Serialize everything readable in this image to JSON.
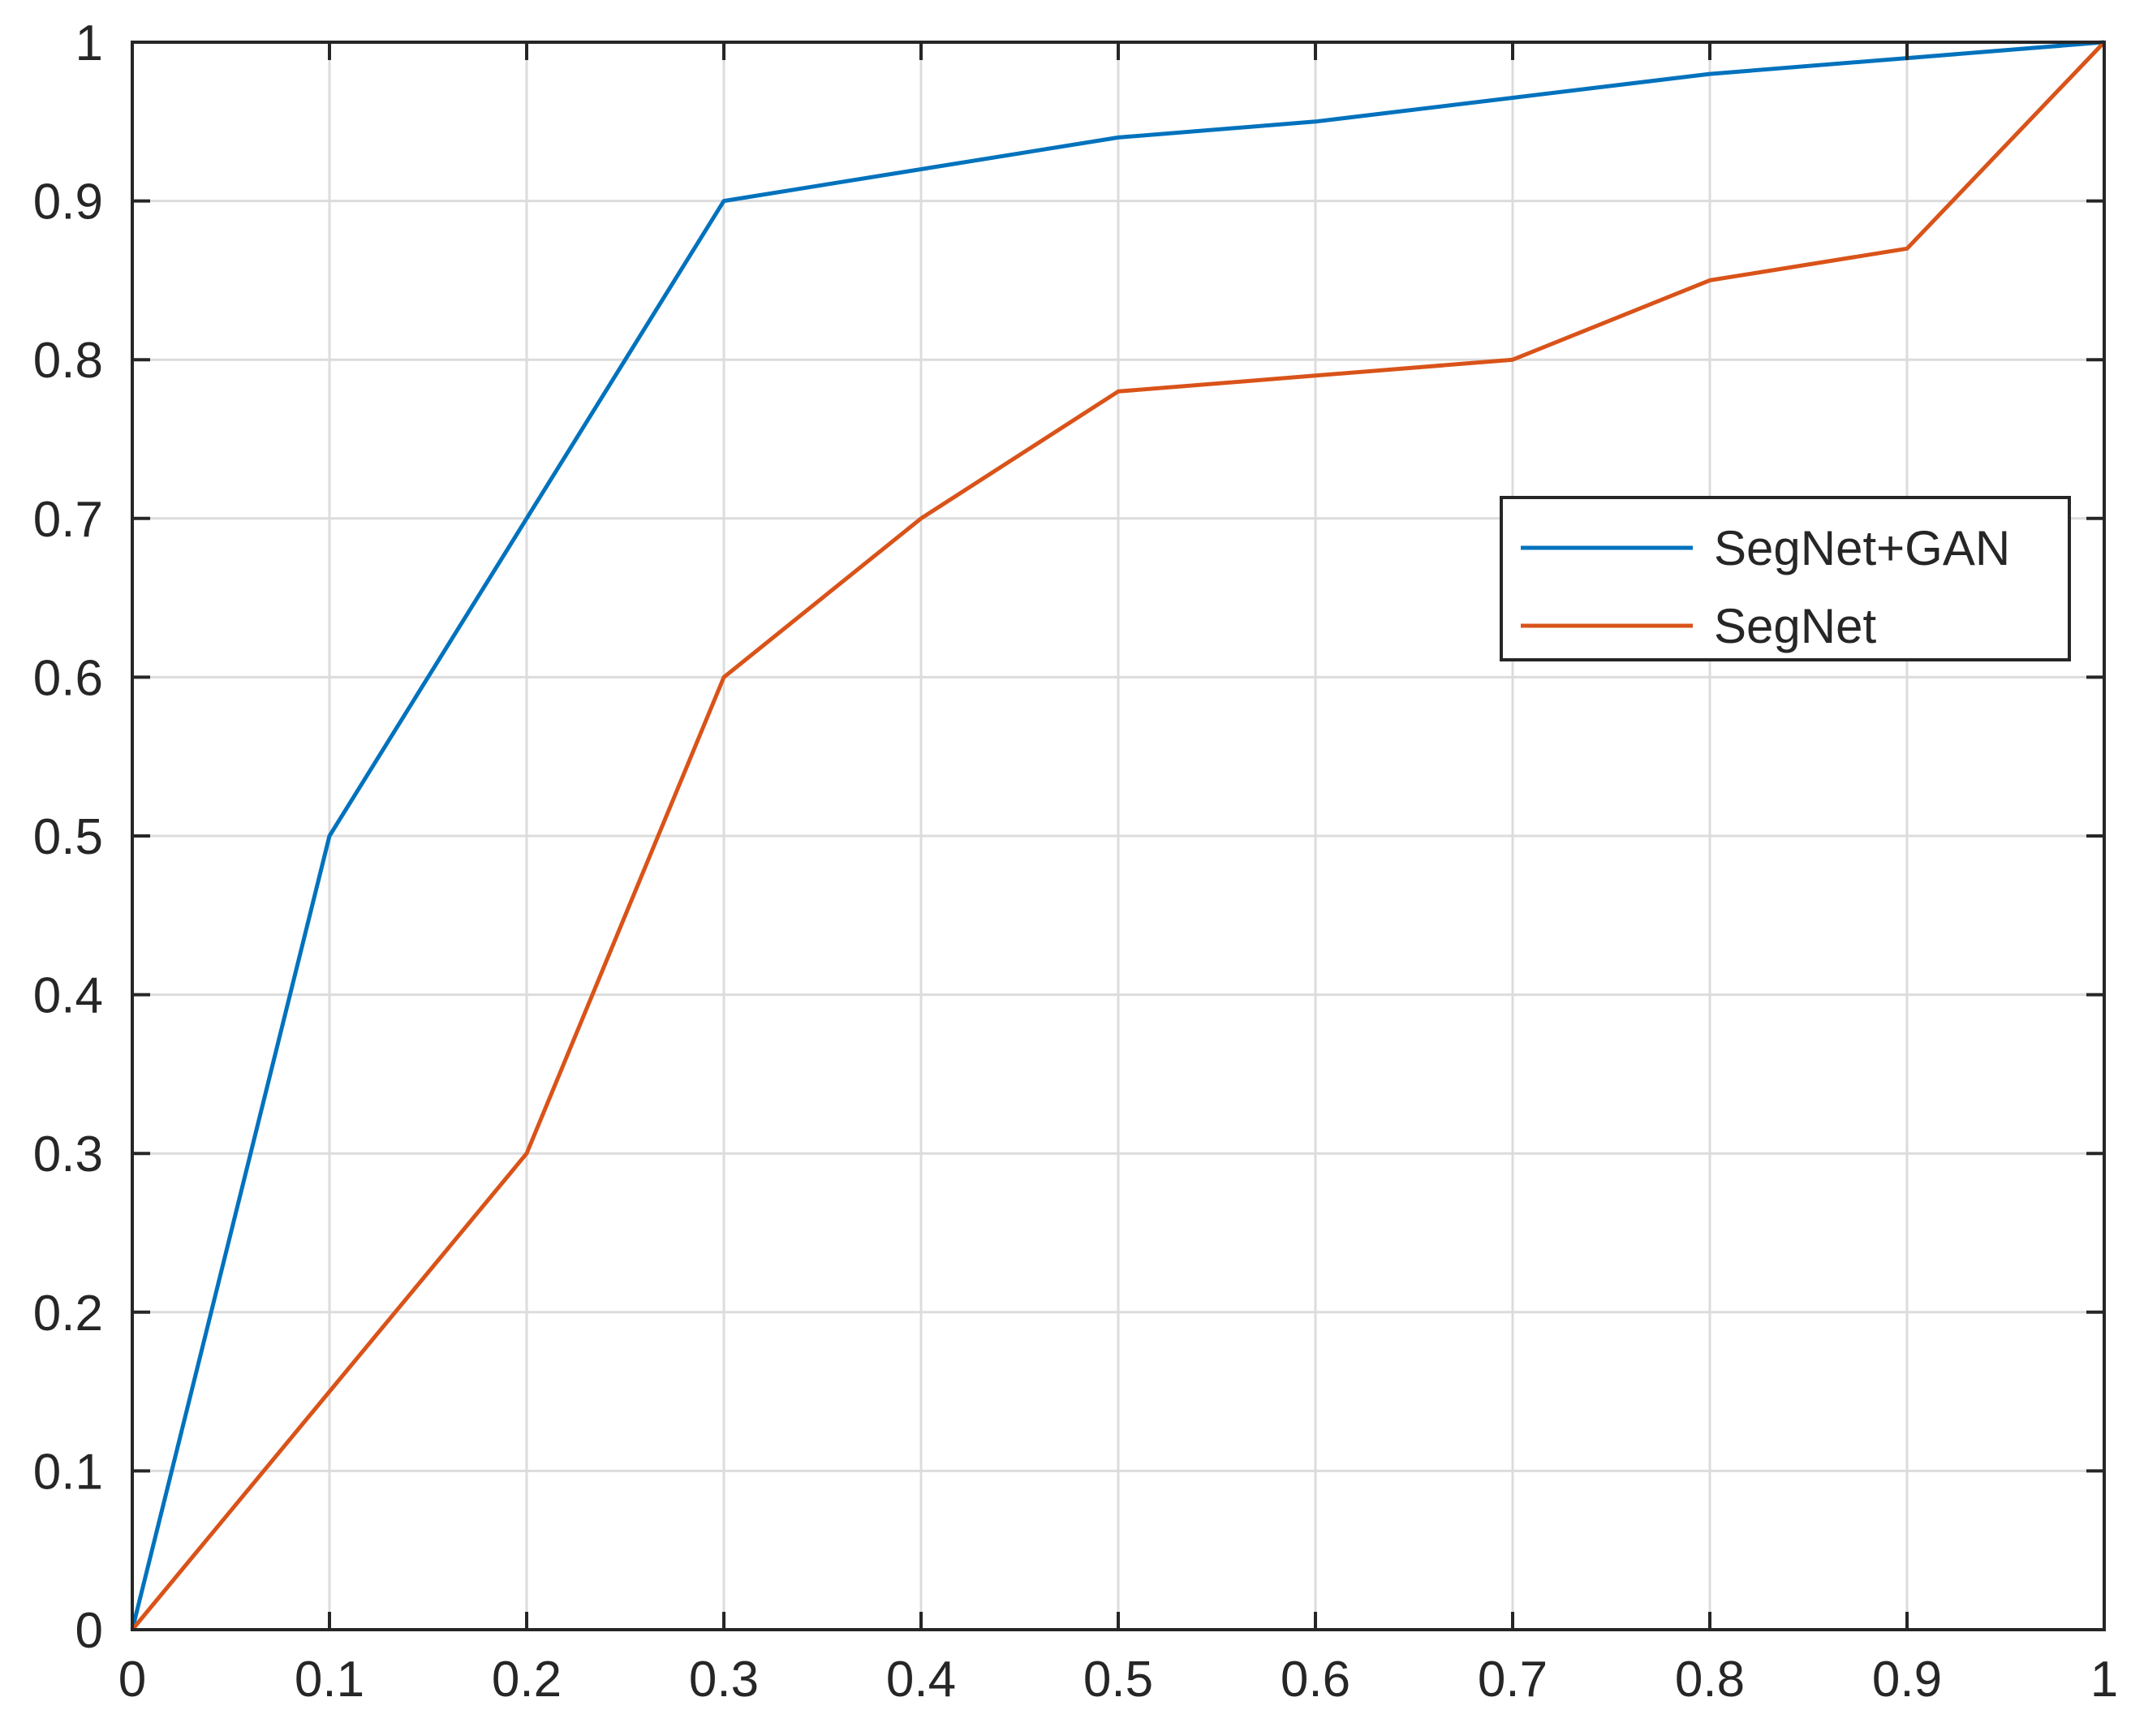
{
  "chart_data": {
    "type": "line",
    "title": "",
    "xlabel": "",
    "ylabel": "",
    "xlim": [
      0,
      1
    ],
    "ylim": [
      0,
      1
    ],
    "xticks": [
      "0",
      "0.1",
      "0.2",
      "0.3",
      "0.4",
      "0.5",
      "0.6",
      "0.7",
      "0.8",
      "0.9",
      "1"
    ],
    "yticks": [
      "0",
      "0.1",
      "0.2",
      "0.3",
      "0.4",
      "0.5",
      "0.6",
      "0.7",
      "0.8",
      "0.9",
      "1"
    ],
    "grid": true,
    "legend_position": "right",
    "series": [
      {
        "name": "SegNet+GAN",
        "color": "#0072BD",
        "x": [
          0,
          0.1,
          0.2,
          0.3,
          0.4,
          0.5,
          0.6,
          0.7,
          0.8,
          0.9,
          1.0
        ],
        "y": [
          0,
          0.5,
          0.7,
          0.9,
          0.92,
          0.94,
          0.95,
          0.965,
          0.98,
          0.99,
          1.0
        ]
      },
      {
        "name": "SegNet",
        "color": "#D95319",
        "x": [
          0,
          0.1,
          0.2,
          0.3,
          0.4,
          0.5,
          0.6,
          0.7,
          0.8,
          0.9,
          1.0
        ],
        "y": [
          0,
          0.15,
          0.3,
          0.6,
          0.7,
          0.78,
          0.79,
          0.8,
          0.85,
          0.87,
          1.0
        ]
      }
    ]
  }
}
